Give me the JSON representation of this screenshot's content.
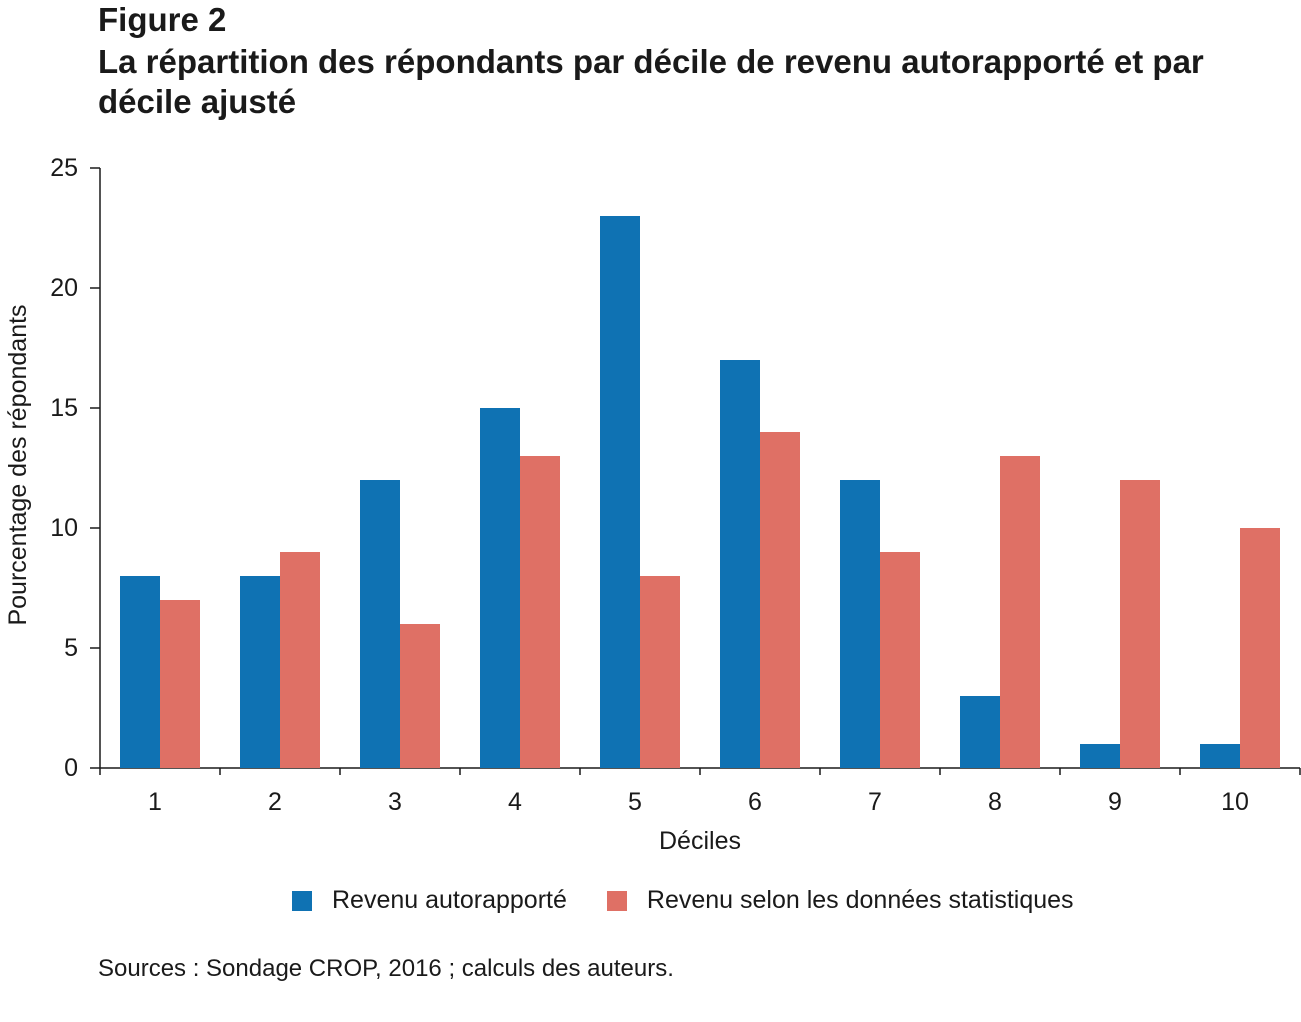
{
  "figure_label": "Figure 2",
  "title": "La répartition des répondants par décile de revenu autorapporté et par décile ajusté",
  "source": "Sources : Sondage CROP, 2016 ; calculs des auteurs.",
  "colors": {
    "series1": "#0f72b3",
    "series2": "#df7065"
  },
  "chart_data": {
    "type": "bar",
    "xlabel": "Déciles",
    "ylabel": "Pourcentage des répondants",
    "ylim": [
      0,
      25
    ],
    "yticks": [
      0,
      5,
      10,
      15,
      20,
      25
    ],
    "categories": [
      "1",
      "2",
      "3",
      "4",
      "5",
      "6",
      "7",
      "8",
      "9",
      "10"
    ],
    "series": [
      {
        "name": "Revenu autorapporté",
        "values": [
          8,
          8,
          12,
          15,
          23,
          17,
          12,
          3,
          1,
          1
        ]
      },
      {
        "name": "Revenu selon les données statistiques",
        "values": [
          7,
          9,
          6,
          13,
          8,
          14,
          9,
          13,
          12,
          10
        ]
      }
    ],
    "grid": false,
    "legend_position": "bottom"
  }
}
